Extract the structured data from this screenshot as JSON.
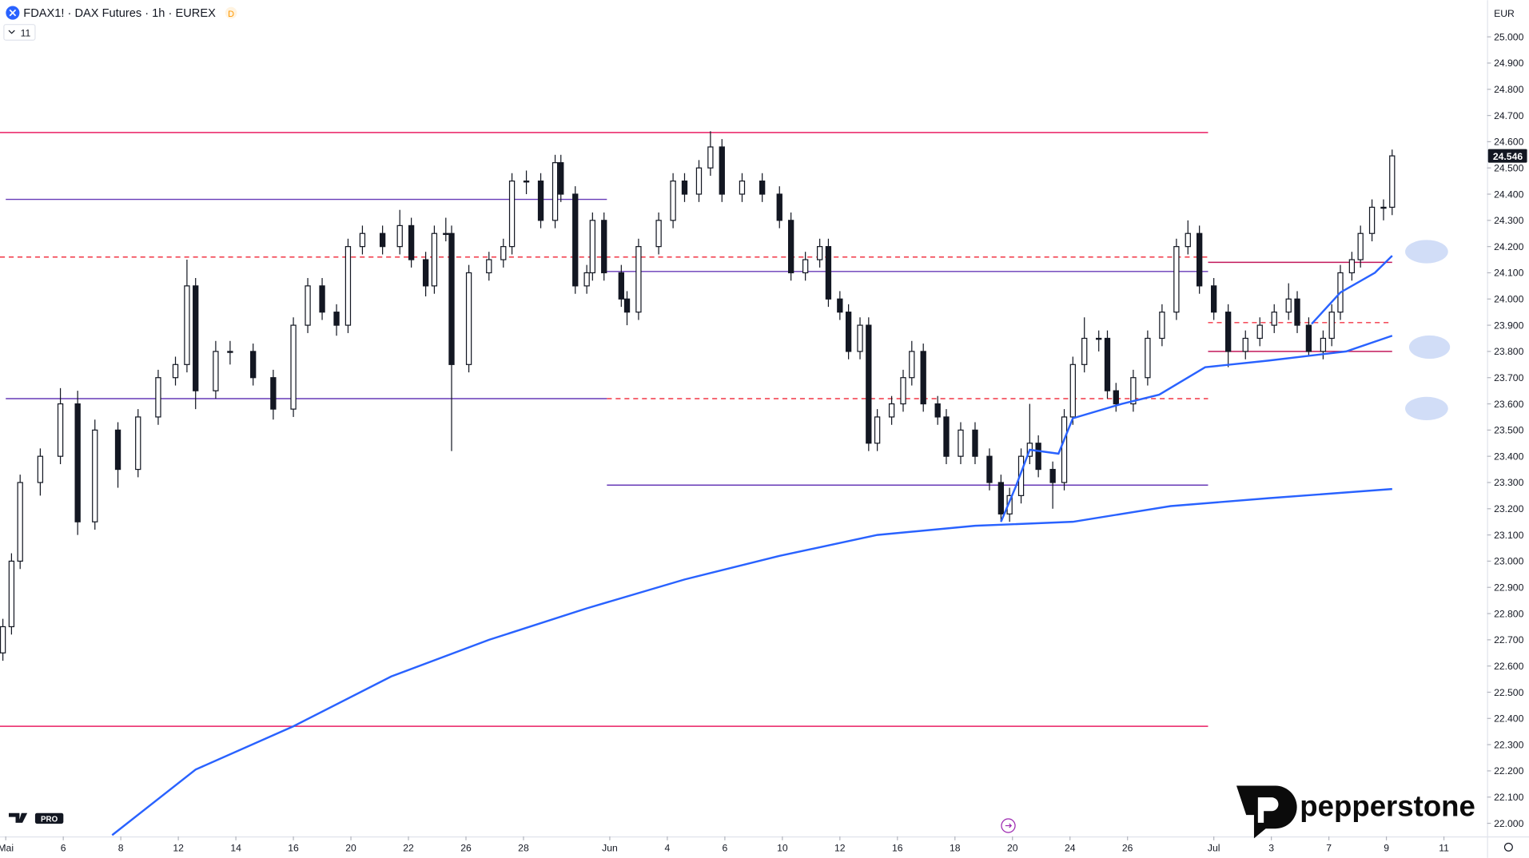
{
  "header": {
    "symbol": "FDAX1! · DAX Futures · 1h · EUREX",
    "badge": "D",
    "indicator_count": "11",
    "currency": "EUR"
  },
  "watermark": {
    "brand": "pepperstone",
    "tv_badge": "PRO"
  },
  "chart_data": {
    "type": "candlestick",
    "xlim": [
      -0.2,
      51.5
    ],
    "ylim": [
      21950,
      25140
    ],
    "xticks": [
      {
        "value": 0,
        "label": "Mai"
      },
      {
        "value": 2,
        "label": "6"
      },
      {
        "value": 4,
        "label": "8"
      },
      {
        "value": 6,
        "label": "12"
      },
      {
        "value": 8,
        "label": "14"
      },
      {
        "value": 10,
        "label": "16"
      },
      {
        "value": 12,
        "label": "20"
      },
      {
        "value": 14,
        "label": "22"
      },
      {
        "value": 16,
        "label": "26"
      },
      {
        "value": 18,
        "label": "28"
      },
      {
        "value": 21,
        "label": "Jun"
      },
      {
        "value": 23,
        "label": "4"
      },
      {
        "value": 25,
        "label": "6"
      },
      {
        "value": 27,
        "label": "10"
      },
      {
        "value": 29,
        "label": "12"
      },
      {
        "value": 31,
        "label": "16"
      },
      {
        "value": 33,
        "label": "18"
      },
      {
        "value": 35,
        "label": "20"
      },
      {
        "value": 37,
        "label": "24"
      },
      {
        "value": 39,
        "label": "26"
      },
      {
        "value": 42,
        "label": "Jul"
      },
      {
        "value": 44,
        "label": "3"
      },
      {
        "value": 46,
        "label": "7"
      },
      {
        "value": 48,
        "label": "9"
      },
      {
        "value": 50,
        "label": "11"
      }
    ],
    "yticks": [
      {
        "value": 25000,
        "label": "25.000"
      },
      {
        "value": 24900,
        "label": "24.900"
      },
      {
        "value": 24800,
        "label": "24.800"
      },
      {
        "value": 24700,
        "label": "24.700"
      },
      {
        "value": 24600,
        "label": "24.600"
      },
      {
        "value": 24500,
        "label": "24.500"
      },
      {
        "value": 24400,
        "label": "24.400"
      },
      {
        "value": 24300,
        "label": "24.300"
      },
      {
        "value": 24200,
        "label": "24.200"
      },
      {
        "value": 24100,
        "label": "24.100"
      },
      {
        "value": 24000,
        "label": "24.000"
      },
      {
        "value": 23900,
        "label": "23.900"
      },
      {
        "value": 23800,
        "label": "23.800"
      },
      {
        "value": 23700,
        "label": "23.700"
      },
      {
        "value": 23600,
        "label": "23.600"
      },
      {
        "value": 23500,
        "label": "23.500"
      },
      {
        "value": 23400,
        "label": "23.400"
      },
      {
        "value": 23300,
        "label": "23.300"
      },
      {
        "value": 23200,
        "label": "23.200"
      },
      {
        "value": 23100,
        "label": "23.100"
      },
      {
        "value": 23000,
        "label": "23.000"
      },
      {
        "value": 22900,
        "label": "22.900"
      },
      {
        "value": 22800,
        "label": "22.800"
      },
      {
        "value": 22700,
        "label": "22.700"
      },
      {
        "value": 22600,
        "label": "22.600"
      },
      {
        "value": 22500,
        "label": "22.500"
      },
      {
        "value": 22400,
        "label": "22.400"
      },
      {
        "value": 22300,
        "label": "22.300"
      },
      {
        "value": 22200,
        "label": "22.200"
      },
      {
        "value": 22100,
        "label": "22.100"
      },
      {
        "value": 22000,
        "label": "22.000"
      }
    ],
    "last_price": {
      "value": 24546,
      "label": "24.546"
    },
    "candle_color": "#131722",
    "x": [
      -0.1,
      0.2,
      0.5,
      1.2,
      1.9,
      2.5,
      3.1,
      3.9,
      4.6,
      5.3,
      5.9,
      6.3,
      6.6,
      7.3,
      7.8,
      8.6,
      9.3,
      10,
      10.5,
      11,
      11.5,
      11.9,
      12.4,
      13.1,
      13.7,
      14.1,
      14.6,
      14.9,
      15.3,
      15.5,
      16.1,
      16.8,
      17.3,
      17.6,
      18.1,
      18.6,
      19.1,
      19.3,
      19.8,
      20.2,
      20.4,
      20.8,
      21.4,
      21.6,
      22,
      22.7,
      23.2,
      23.6,
      24.1,
      24.5,
      24.9,
      25.6,
      26.3,
      26.9,
      27.3,
      27.8,
      28.3,
      28.6,
      29,
      29.3,
      29.7,
      30,
      30.3,
      30.8,
      31.2,
      31.5,
      31.9,
      32.4,
      32.7,
      33.2,
      33.7,
      34.2,
      34.6,
      34.9,
      35.3,
      35.6,
      35.9,
      36.4,
      36.8,
      37.1,
      37.5,
      38,
      38.3,
      38.6,
      39.2,
      39.7,
      40.2,
      40.7,
      41.1,
      41.5,
      42,
      42.5,
      43.1,
      43.6,
      44.1,
      44.6,
      44.9,
      45.3,
      45.8,
      46.1,
      46.4,
      46.8,
      47.1,
      47.5,
      47.9,
      48.2
    ],
    "ohlc": [
      [
        22650,
        22780,
        22620,
        22750
      ],
      [
        22750,
        23030,
        22720,
        23000
      ],
      [
        23000,
        23330,
        22970,
        23300
      ],
      [
        23300,
        23430,
        23250,
        23400
      ],
      [
        23400,
        23660,
        23370,
        23600
      ],
      [
        23600,
        23650,
        23100,
        23150
      ],
      [
        23150,
        23540,
        23120,
        23500
      ],
      [
        23500,
        23530,
        23280,
        23350
      ],
      [
        23350,
        23580,
        23320,
        23550
      ],
      [
        23550,
        23730,
        23520,
        23700
      ],
      [
        23700,
        23780,
        23670,
        23750
      ],
      [
        23750,
        24150,
        23720,
        24050
      ],
      [
        24050,
        24080,
        23580,
        23650
      ],
      [
        23650,
        23840,
        23620,
        23800
      ],
      [
        23800,
        23840,
        23750,
        23800
      ],
      [
        23800,
        23830,
        23670,
        23700
      ],
      [
        23700,
        23730,
        23540,
        23580
      ],
      [
        23580,
        23930,
        23550,
        23900
      ],
      [
        23900,
        24080,
        23870,
        24050
      ],
      [
        24050,
        24080,
        23920,
        23950
      ],
      [
        23950,
        23980,
        23860,
        23900
      ],
      [
        23900,
        24230,
        23870,
        24200
      ],
      [
        24200,
        24280,
        24170,
        24250
      ],
      [
        24250,
        24280,
        24170,
        24200
      ],
      [
        24200,
        24340,
        24170,
        24280
      ],
      [
        24280,
        24310,
        24120,
        24150
      ],
      [
        24150,
        24180,
        24010,
        24050
      ],
      [
        24050,
        24280,
        24020,
        24250
      ],
      [
        24250,
        24310,
        24220,
        24250
      ],
      [
        24250,
        24280,
        23420,
        23750
      ],
      [
        23750,
        24130,
        23720,
        24100
      ],
      [
        24100,
        24180,
        24070,
        24150
      ],
      [
        24150,
        24230,
        24120,
        24200
      ],
      [
        24200,
        24480,
        24170,
        24450
      ],
      [
        24450,
        24490,
        24400,
        24450
      ],
      [
        24450,
        24480,
        24270,
        24300
      ],
      [
        24300,
        24550,
        24270,
        24520
      ],
      [
        24520,
        24550,
        24370,
        24400
      ],
      [
        24400,
        24430,
        24020,
        24050
      ],
      [
        24050,
        24130,
        24020,
        24100
      ],
      [
        24100,
        24330,
        24070,
        24300
      ],
      [
        24300,
        24330,
        24070,
        24100
      ],
      [
        24100,
        24130,
        23970,
        24000
      ],
      [
        24000,
        24030,
        23900,
        23950
      ],
      [
        23950,
        24230,
        23920,
        24200
      ],
      [
        24200,
        24330,
        24170,
        24300
      ],
      [
        24300,
        24480,
        24270,
        24450
      ],
      [
        24450,
        24480,
        24370,
        24400
      ],
      [
        24400,
        24530,
        24370,
        24500
      ],
      [
        24500,
        24640,
        24470,
        24580
      ],
      [
        24580,
        24610,
        24370,
        24400
      ],
      [
        24400,
        24480,
        24370,
        24450
      ],
      [
        24450,
        24480,
        24370,
        24400
      ],
      [
        24400,
        24430,
        24270,
        24300
      ],
      [
        24300,
        24330,
        24070,
        24100
      ],
      [
        24100,
        24180,
        24070,
        24150
      ],
      [
        24150,
        24230,
        24120,
        24200
      ],
      [
        24200,
        24230,
        23970,
        24000
      ],
      [
        24000,
        24030,
        23920,
        23950
      ],
      [
        23950,
        23980,
        23770,
        23800
      ],
      [
        23800,
        23930,
        23770,
        23900
      ],
      [
        23900,
        23930,
        23420,
        23450
      ],
      [
        23450,
        23580,
        23420,
        23550
      ],
      [
        23550,
        23630,
        23520,
        23600
      ],
      [
        23600,
        23730,
        23570,
        23700
      ],
      [
        23700,
        23840,
        23670,
        23800
      ],
      [
        23800,
        23830,
        23570,
        23600
      ],
      [
        23600,
        23630,
        23520,
        23550
      ],
      [
        23550,
        23580,
        23370,
        23400
      ],
      [
        23400,
        23530,
        23370,
        23500
      ],
      [
        23500,
        23530,
        23370,
        23400
      ],
      [
        23400,
        23430,
        23270,
        23300
      ],
      [
        23300,
        23330,
        23150,
        23180
      ],
      [
        23180,
        23280,
        23150,
        23250
      ],
      [
        23250,
        23430,
        23220,
        23400
      ],
      [
        23400,
        23600,
        23370,
        23450
      ],
      [
        23450,
        23480,
        23320,
        23350
      ],
      [
        23350,
        23380,
        23200,
        23300
      ],
      [
        23300,
        23580,
        23270,
        23550
      ],
      [
        23550,
        23780,
        23520,
        23750
      ],
      [
        23750,
        23930,
        23720,
        23850
      ],
      [
        23850,
        23880,
        23800,
        23850
      ],
      [
        23850,
        23880,
        23620,
        23650
      ],
      [
        23650,
        23680,
        23570,
        23600
      ],
      [
        23600,
        23730,
        23570,
        23700
      ],
      [
        23700,
        23880,
        23670,
        23850
      ],
      [
        23850,
        23980,
        23820,
        23950
      ],
      [
        23950,
        24230,
        23920,
        24200
      ],
      [
        24200,
        24300,
        24170,
        24250
      ],
      [
        24250,
        24280,
        24020,
        24050
      ],
      [
        24050,
        24080,
        23920,
        23950
      ],
      [
        23950,
        23980,
        23740,
        23800
      ],
      [
        23800,
        23880,
        23770,
        23850
      ],
      [
        23850,
        23930,
        23820,
        23900
      ],
      [
        23900,
        23980,
        23870,
        23950
      ],
      [
        23950,
        24060,
        23920,
        24000
      ],
      [
        24000,
        24030,
        23870,
        23900
      ],
      [
        23900,
        23930,
        23780,
        23800
      ],
      [
        23800,
        23880,
        23770,
        23850
      ],
      [
        23850,
        23980,
        23820,
        23950
      ],
      [
        23950,
        24130,
        23920,
        24100
      ],
      [
        24100,
        24180,
        24070,
        24150
      ],
      [
        24150,
        24280,
        24120,
        24250
      ],
      [
        24250,
        24380,
        24220,
        24350
      ],
      [
        24350,
        24380,
        24300,
        24350
      ],
      [
        24350,
        24570,
        24320,
        24546
      ]
    ],
    "overlays": [
      {
        "color": "#2962ff",
        "x": [
          3.7,
          6.6,
          10,
          13.4,
          16.8,
          20.2,
          23.6,
          26.9,
          30.3,
          33.7,
          37.1,
          40.5,
          43.9,
          48.2
        ],
        "values": [
          21955,
          22205,
          22370,
          22560,
          22700,
          22820,
          22930,
          23020,
          23100,
          23135,
          23150,
          23210,
          23240,
          23275
        ]
      },
      {
        "color": "#2962ff",
        "x": [
          34.6,
          35.1,
          35.6,
          36.6,
          37.1,
          38.8,
          40.1,
          41.7,
          43.9,
          46.6,
          48.2
        ],
        "values": [
          23150,
          23280,
          23425,
          23410,
          23545,
          23600,
          23635,
          23740,
          23765,
          23800,
          23860
        ]
      },
      {
        "color": "#2962ff",
        "x": [
          45.4,
          46.4,
          47.6,
          48.2
        ],
        "values": [
          23905,
          24025,
          24100,
          24165
        ]
      }
    ],
    "levels": [
      {
        "value": 24635,
        "from": -0.2,
        "to": 41.8,
        "color": "#e91e63",
        "dashed": false
      },
      {
        "value": 22370,
        "from": -0.2,
        "to": 41.8,
        "color": "#e91e63",
        "dashed": false
      },
      {
        "value": 24380,
        "from": 0,
        "to": 20.9,
        "color": "#673ab7",
        "dashed": false
      },
      {
        "value": 23620,
        "from": 0,
        "to": 20.9,
        "color": "#673ab7",
        "dashed": false
      },
      {
        "value": 24160,
        "from": -0.2,
        "to": 41.8,
        "color": "#f23645",
        "dashed": true
      },
      {
        "value": 24105,
        "from": 20.9,
        "to": 41.8,
        "color": "#673ab7",
        "dashed": false
      },
      {
        "value": 23620,
        "from": 20.9,
        "to": 41.8,
        "color": "#f23645",
        "dashed": true
      },
      {
        "value": 23290,
        "from": 20.9,
        "to": 41.8,
        "color": "#673ab7",
        "dashed": false
      },
      {
        "value": 24140,
        "from": 41.8,
        "to": 48.2,
        "color": "#c2185b",
        "dashed": false
      },
      {
        "value": 23910,
        "from": 41.8,
        "to": 48.2,
        "color": "#f23645",
        "dashed": true
      },
      {
        "value": 23800,
        "from": 41.8,
        "to": 48.2,
        "color": "#c2185b",
        "dashed": false
      }
    ]
  }
}
